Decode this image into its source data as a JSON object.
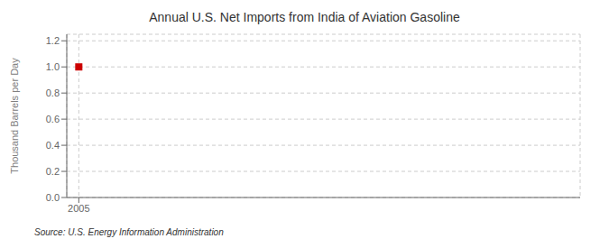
{
  "chart_data": {
    "type": "scatter",
    "title": "Annual U.S. Net Imports from India of Aviation Gasoline",
    "y_label": "Thousand Barrels per Day",
    "source": "Source: U.S. Energy Information Administration",
    "x": [
      2005
    ],
    "values": [
      1.0
    ],
    "color": "#cc0000",
    "marker": "square",
    "xlim": [
      2004.4,
      2030
    ],
    "ylim": [
      0.0,
      1.25
    ],
    "xticks": [
      2005
    ],
    "yticks": [
      {
        "value": 0.0,
        "label": "0.0"
      },
      0.2,
      0.4,
      0.6,
      0.8,
      {
        "value": 1.0,
        "label": "1.0"
      },
      1.2
    ],
    "grid": true
  }
}
